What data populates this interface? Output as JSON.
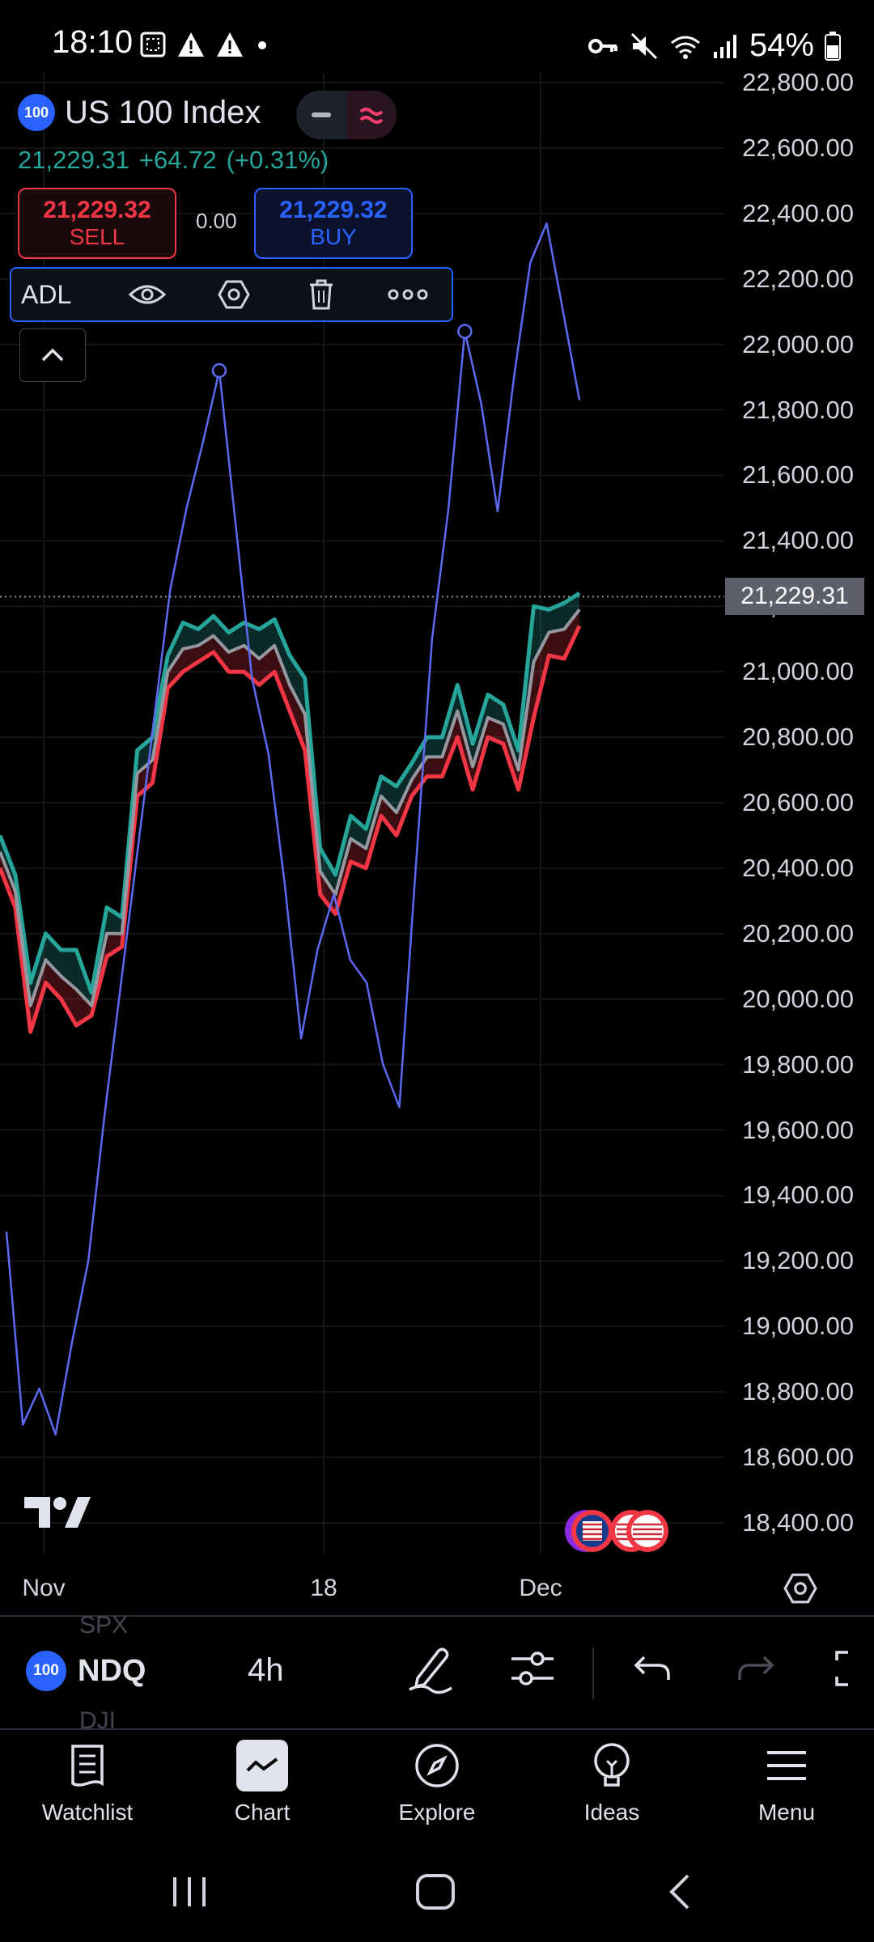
{
  "status_bar": {
    "time": "18:10",
    "battery": "54%",
    "left_icons": [
      "screenshot-icon",
      "warning-icon",
      "warning-icon",
      "dot-icon"
    ],
    "right_icons": [
      "vpn-key-icon",
      "mute-icon",
      "wifi-icon",
      "signal-icon",
      "battery-icon"
    ]
  },
  "header": {
    "badge": "100",
    "symbol": "US 100 Index",
    "last": "21,229.31",
    "change": "+64.72",
    "change_pct": "(+0.31%)",
    "sell_price": "21,229.32",
    "sell_label": "SELL",
    "spread": "0.00",
    "buy_price": "21,229.32",
    "buy_label": "BUY"
  },
  "indicator": {
    "label": "ADL",
    "actions": [
      "eye-icon",
      "settings-hex-icon",
      "trash-icon",
      "more-icon"
    ]
  },
  "chart_data": {
    "type": "line",
    "y_ticks": [
      "22,800.00",
      "22,600.00",
      "22,400.00",
      "22,200.00",
      "22,000.00",
      "21,800.00",
      "21,600.00",
      "21,400.00",
      "21,200.00",
      "21,000.00",
      "20,800.00",
      "20,600.00",
      "20,400.00",
      "20,200.00",
      "20,000.00",
      "19,800.00",
      "19,600.00",
      "19,400.00",
      "19,200.00",
      "19,000.00",
      "18,800.00",
      "18,600.00",
      "18,400.00"
    ],
    "ylim": [
      18300,
      22800
    ],
    "current_price_label": "21,229.31",
    "current_price": 21229.31,
    "x_ticks": [
      "Nov",
      "18",
      "Dec"
    ],
    "colors": {
      "adl": "#5b6af0",
      "upper": "#26a69a",
      "lower": "#f23645",
      "mid": "#9598a1"
    },
    "adl_values": [
      19290,
      18700,
      18810,
      18670,
      18950,
      19200,
      19650,
      20050,
      20450,
      20850,
      21250,
      21500,
      21700,
      21920,
      21450,
      20980,
      20750,
      20350,
      19880,
      20150,
      20320,
      20120,
      20050,
      19800,
      19670,
      20400,
      21100,
      21500,
      22040,
      21820,
      21490,
      21900,
      22250,
      22370,
      22100,
      21830
    ],
    "upper_values": [
      20500,
      20380,
      20050,
      20200,
      20150,
      20150,
      20020,
      20280,
      20250,
      20760,
      20800,
      21050,
      21150,
      21130,
      21170,
      21120,
      21150,
      21130,
      21160,
      21050,
      20980,
      20460,
      20380,
      20560,
      20520,
      20680,
      20650,
      20720,
      20800,
      20800,
      20960,
      20780,
      20930,
      20900,
      20760,
      21200,
      21190,
      21210,
      21240
    ],
    "lower_values": [
      20400,
      20280,
      19900,
      20050,
      20000,
      19920,
      19950,
      20130,
      20160,
      20620,
      20660,
      20950,
      21000,
      21030,
      21060,
      21000,
      21000,
      20960,
      21000,
      20880,
      20760,
      20320,
      20260,
      20420,
      20400,
      20560,
      20500,
      20620,
      20680,
      20680,
      20800,
      20640,
      20800,
      20780,
      20640,
      20860,
      21050,
      21040,
      21140
    ],
    "mid_values": [
      20450,
      20330,
      19980,
      20120,
      20070,
      20030,
      19980,
      20200,
      20200,
      20690,
      20730,
      21000,
      21070,
      21080,
      21110,
      21060,
      21080,
      21040,
      21080,
      20960,
      20870,
      20390,
      20320,
      20490,
      20460,
      20620,
      20570,
      20670,
      20740,
      20740,
      20880,
      20710,
      20860,
      20840,
      20700,
      21030,
      21120,
      21130,
      21190
    ],
    "marker_indices": [
      13,
      28
    ]
  },
  "bottom_toolbar": {
    "badge": "100",
    "symbol": "NDQ",
    "ghost_above": "SPX",
    "ghost_below": "DJI",
    "interval": "4h",
    "icons": [
      "pencil-icon",
      "sliders-icon",
      "undo-icon",
      "redo-icon",
      "fullscreen-icon"
    ]
  },
  "nav": {
    "items": [
      {
        "label": "Watchlist",
        "icon": "watchlist-icon"
      },
      {
        "label": "Chart",
        "icon": "chart-icon"
      },
      {
        "label": "Explore",
        "icon": "compass-icon"
      },
      {
        "label": "Ideas",
        "icon": "lightbulb-icon"
      },
      {
        "label": "Menu",
        "icon": "menu-icon"
      }
    ]
  },
  "system_nav": [
    "recents-icon",
    "home-icon",
    "back-icon"
  ]
}
